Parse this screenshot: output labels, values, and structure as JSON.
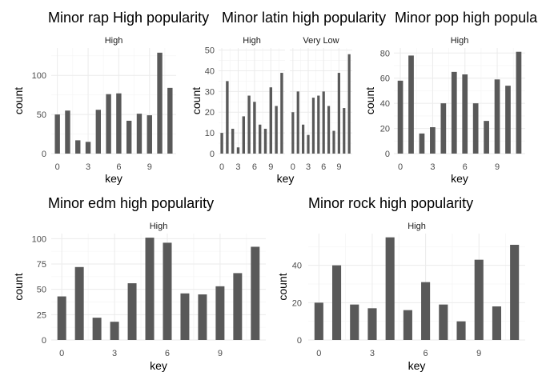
{
  "colors": {
    "bar": "#595959",
    "grid_major": "#ebebeb",
    "grid_minor": "#f5f5f5",
    "tick_text": "#4d4d4d",
    "text": "#000000",
    "strip_text": "#1a1a1a"
  },
  "chart_data": [
    {
      "type": "bar",
      "title": "Minor rap High popularity",
      "xlabel": "key",
      "ylabel": "count",
      "xticks": [
        0,
        3,
        6,
        9
      ],
      "ylim": [
        0,
        135
      ],
      "yticks": [
        0,
        50,
        100
      ],
      "grid": true,
      "panels": [
        {
          "strip": "High",
          "x": [
            0,
            1,
            2,
            3,
            4,
            5,
            6,
            7,
            8,
            9,
            10,
            11
          ],
          "values": [
            50,
            55,
            17,
            15,
            56,
            76,
            77,
            42,
            51,
            49,
            129,
            84
          ]
        }
      ]
    },
    {
      "type": "bar",
      "title": "Minor latin high popularity",
      "xlabel": "key",
      "ylabel": "count",
      "xticks": [
        0,
        3,
        6,
        9
      ],
      "ylim": [
        0,
        51
      ],
      "yticks": [
        0,
        10,
        20,
        30,
        40,
        50
      ],
      "grid": true,
      "panels": [
        {
          "strip": "High",
          "x": [
            0,
            1,
            2,
            3,
            4,
            5,
            6,
            7,
            8,
            9,
            10,
            11
          ],
          "values": [
            10,
            35,
            12,
            3,
            18,
            28,
            25,
            14,
            12,
            32,
            23,
            39
          ]
        },
        {
          "strip": "Very Low",
          "x": [
            0,
            1,
            2,
            3,
            4,
            5,
            6,
            7,
            8,
            9,
            10,
            11
          ],
          "values": [
            20,
            30,
            14,
            9,
            27,
            28,
            30,
            23,
            11,
            39,
            22,
            48
          ]
        }
      ]
    },
    {
      "type": "bar",
      "title": "Minor pop high popularity",
      "xlabel": "key",
      "ylabel": "count",
      "xticks": [
        0,
        3,
        6,
        9
      ],
      "ylim": [
        0,
        84
      ],
      "yticks": [
        0,
        20,
        40,
        60,
        80
      ],
      "grid": true,
      "panels": [
        {
          "strip": "High",
          "x": [
            0,
            1,
            2,
            3,
            4,
            5,
            6,
            7,
            8,
            9,
            10,
            11
          ],
          "values": [
            58,
            78,
            16,
            21,
            40,
            65,
            63,
            40,
            26,
            59,
            54,
            81
          ]
        }
      ]
    },
    {
      "type": "bar",
      "title": "Minor edm high popularity",
      "xlabel": "key",
      "ylabel": "count",
      "xticks": [
        0,
        3,
        6,
        9
      ],
      "ylim": [
        0,
        105
      ],
      "yticks": [
        0,
        25,
        50,
        75,
        100
      ],
      "grid": true,
      "panels": [
        {
          "strip": "High",
          "x": [
            0,
            1,
            2,
            3,
            4,
            5,
            6,
            7,
            8,
            9,
            10,
            11
          ],
          "values": [
            43,
            72,
            22,
            18,
            56,
            101,
            96,
            46,
            45,
            53,
            66,
            92
          ]
        }
      ]
    },
    {
      "type": "bar",
      "title": "Minor rock high popularity",
      "xlabel": "key",
      "ylabel": "count",
      "xticks": [
        0,
        3,
        6,
        9
      ],
      "ylim": [
        0,
        57
      ],
      "yticks": [
        0,
        20,
        40
      ],
      "grid": true,
      "panels": [
        {
          "strip": "High",
          "x": [
            0,
            1,
            2,
            3,
            4,
            5,
            6,
            7,
            8,
            9,
            10,
            11
          ],
          "values": [
            20,
            40,
            19,
            17,
            55,
            16,
            31,
            19,
            10,
            43,
            18,
            51
          ]
        }
      ]
    }
  ]
}
